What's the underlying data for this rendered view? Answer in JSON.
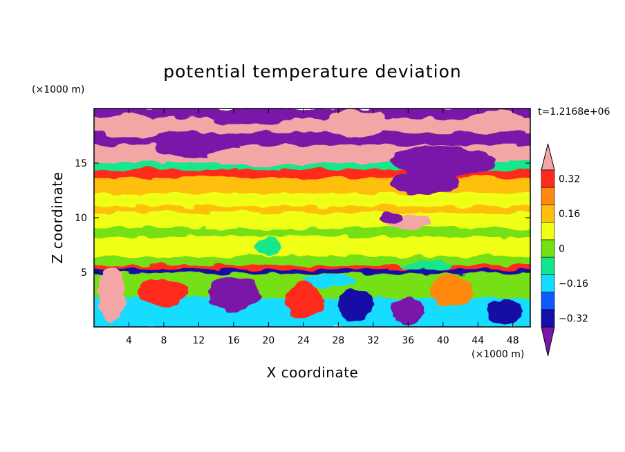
{
  "chart_data": {
    "type": "heatmap",
    "title": "potential temperature deviation",
    "xlabel": "X coordinate",
    "ylabel": "Z coordinate",
    "x_unit": "(×1000 m)",
    "y_unit": "(×1000 m)",
    "time_label": "t=1.2168e+06",
    "xlim": [
      0,
      50
    ],
    "ylim": [
      0,
      20
    ],
    "x_ticks": [
      4,
      8,
      12,
      16,
      20,
      24,
      28,
      32,
      36,
      40,
      44,
      48
    ],
    "y_ticks": [
      5,
      10,
      15
    ],
    "colorbar": {
      "levels": [
        -0.4,
        -0.32,
        -0.24,
        -0.16,
        -0.08,
        0,
        0.08,
        0.16,
        0.24,
        0.32,
        0.4
      ],
      "labels": [
        {
          "value": 0.32,
          "text": "0.32"
        },
        {
          "value": 0.16,
          "text": "0.16"
        },
        {
          "value": 0,
          "text": "0"
        },
        {
          "value": -0.16,
          "text": "−0.16"
        },
        {
          "value": -0.32,
          "text": "−0.32"
        }
      ],
      "colors": [
        "#7a17a8",
        "#140fa6",
        "#0d59ff",
        "#13dcff",
        "#12e68c",
        "#75e012",
        "#f0ff14",
        "#ffbf10",
        "#ff8810",
        "#ff2a1e",
        "#f4a6a6"
      ],
      "extend": "both"
    },
    "bands": [
      {
        "z": [
          19.0,
          20.0
        ],
        "value": -0.4
      },
      {
        "z": [
          17.8,
          19.0
        ],
        "value": 0.4
      },
      {
        "z": [
          16.6,
          17.8
        ],
        "value": -0.4
      },
      {
        "z": [
          15.0,
          16.6
        ],
        "value": 0.4
      },
      {
        "z": [
          14.3,
          15.0
        ],
        "value": -0.08
      },
      {
        "z": [
          13.6,
          14.3
        ],
        "value": 0.32
      },
      {
        "z": [
          12.2,
          13.6
        ],
        "value": 0.16
      },
      {
        "z": [
          11.0,
          12.2
        ],
        "value": 0.08
      },
      {
        "z": [
          10.4,
          11.0
        ],
        "value": 0.16
      },
      {
        "z": [
          9.0,
          10.4
        ],
        "value": 0.08
      },
      {
        "z": [
          8.2,
          9.0
        ],
        "value": 0.0
      },
      {
        "z": [
          6.4,
          8.2
        ],
        "value": 0.08
      },
      {
        "z": [
          5.6,
          6.4
        ],
        "value": 0.0
      },
      {
        "z": [
          5.2,
          5.6
        ],
        "value": 0.32
      },
      {
        "z": [
          4.8,
          5.2
        ],
        "value": -0.32
      },
      {
        "z": [
          2.6,
          4.8
        ],
        "value": 0.0
      },
      {
        "z": [
          0.0,
          2.6
        ],
        "value": -0.16
      }
    ],
    "blobs": [
      {
        "x": 4,
        "z": 18.4,
        "rx": 3.5,
        "rz": 1.1,
        "value": 0.4
      },
      {
        "x": 18,
        "z": 19.2,
        "rx": 5.0,
        "rz": 0.8,
        "value": -0.4
      },
      {
        "x": 30,
        "z": 18.6,
        "rx": 4.0,
        "rz": 1.2,
        "value": 0.4
      },
      {
        "x": 46,
        "z": 18.8,
        "rx": 3.5,
        "rz": 1.0,
        "value": 0.4
      },
      {
        "x": 12,
        "z": 16.4,
        "rx": 5.0,
        "rz": 0.9,
        "value": -0.4
      },
      {
        "x": 20,
        "z": 15.6,
        "rx": 7.0,
        "rz": 0.9,
        "value": 0.4
      },
      {
        "x": 40,
        "z": 15.2,
        "rx": 6.0,
        "rz": 1.4,
        "value": -0.4
      },
      {
        "x": 38,
        "z": 13.2,
        "rx": 4.0,
        "rz": 1.0,
        "value": -0.4
      },
      {
        "x": 36,
        "z": 9.6,
        "rx": 2.5,
        "rz": 0.7,
        "value": 0.4
      },
      {
        "x": 34,
        "z": 10.0,
        "rx": 1.2,
        "rz": 0.6,
        "value": -0.4
      },
      {
        "x": 2,
        "z": 3.0,
        "rx": 1.5,
        "rz": 2.5,
        "value": 0.4
      },
      {
        "x": 8,
        "z": 3.2,
        "rx": 3.0,
        "rz": 1.2,
        "value": 0.32
      },
      {
        "x": 16,
        "z": 3.0,
        "rx": 3.0,
        "rz": 1.6,
        "value": -0.4
      },
      {
        "x": 24,
        "z": 2.4,
        "rx": 2.2,
        "rz": 1.6,
        "value": 0.32
      },
      {
        "x": 30,
        "z": 2.0,
        "rx": 2.0,
        "rz": 1.4,
        "value": -0.32
      },
      {
        "x": 36,
        "z": 1.5,
        "rx": 2.0,
        "rz": 1.2,
        "value": -0.4
      },
      {
        "x": 41,
        "z": 3.4,
        "rx": 2.5,
        "rz": 1.4,
        "value": 0.24
      },
      {
        "x": 47,
        "z": 1.4,
        "rx": 2.0,
        "rz": 1.2,
        "value": -0.32
      },
      {
        "x": 27,
        "z": 4.2,
        "rx": 3.0,
        "rz": 0.6,
        "value": -0.16
      },
      {
        "x": 20,
        "z": 7.4,
        "rx": 1.5,
        "rz": 0.8,
        "value": -0.08
      },
      {
        "x": 38,
        "z": 5.6,
        "rx": 3.0,
        "rz": 0.4,
        "value": -0.08
      }
    ]
  }
}
